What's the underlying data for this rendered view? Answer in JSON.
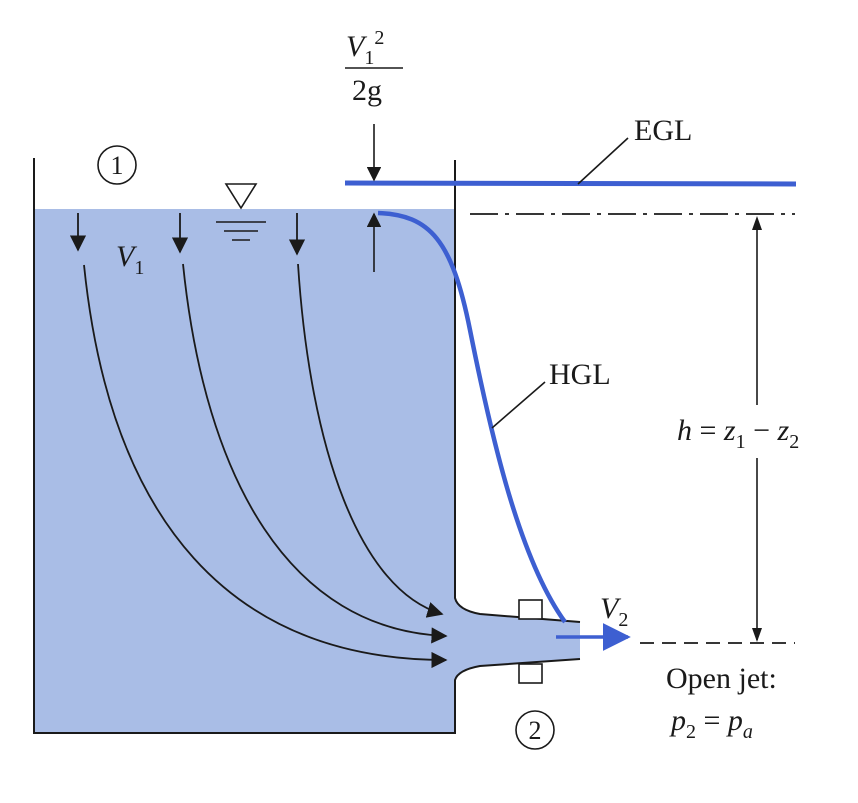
{
  "colors": {
    "water": "#a9bde6",
    "line_blue": "#3d5fd1",
    "ink": "#1a1a1a"
  },
  "labels": {
    "velocity_head_num_V": "V",
    "velocity_head_num_sub": "1",
    "velocity_head_num_sup": "2",
    "velocity_head_den": "2g",
    "egl": "EGL",
    "hgl": "HGL",
    "station_1": "1",
    "station_2": "2",
    "v1_V": "V",
    "v1_sub": "1",
    "v2_V": "V",
    "v2_sub": "2",
    "height_h": "h",
    "height_eq": " = ",
    "height_z1": "z",
    "height_z1_sub": "1",
    "height_minus": " − ",
    "height_z2": "z",
    "height_z2_sub": "2",
    "open_jet_line1": "Open jet:",
    "open_jet_p2": "p",
    "open_jet_p2_sub": "2",
    "open_jet_eq": " = ",
    "open_jet_pa": "p",
    "open_jet_pa_sub": "a"
  }
}
